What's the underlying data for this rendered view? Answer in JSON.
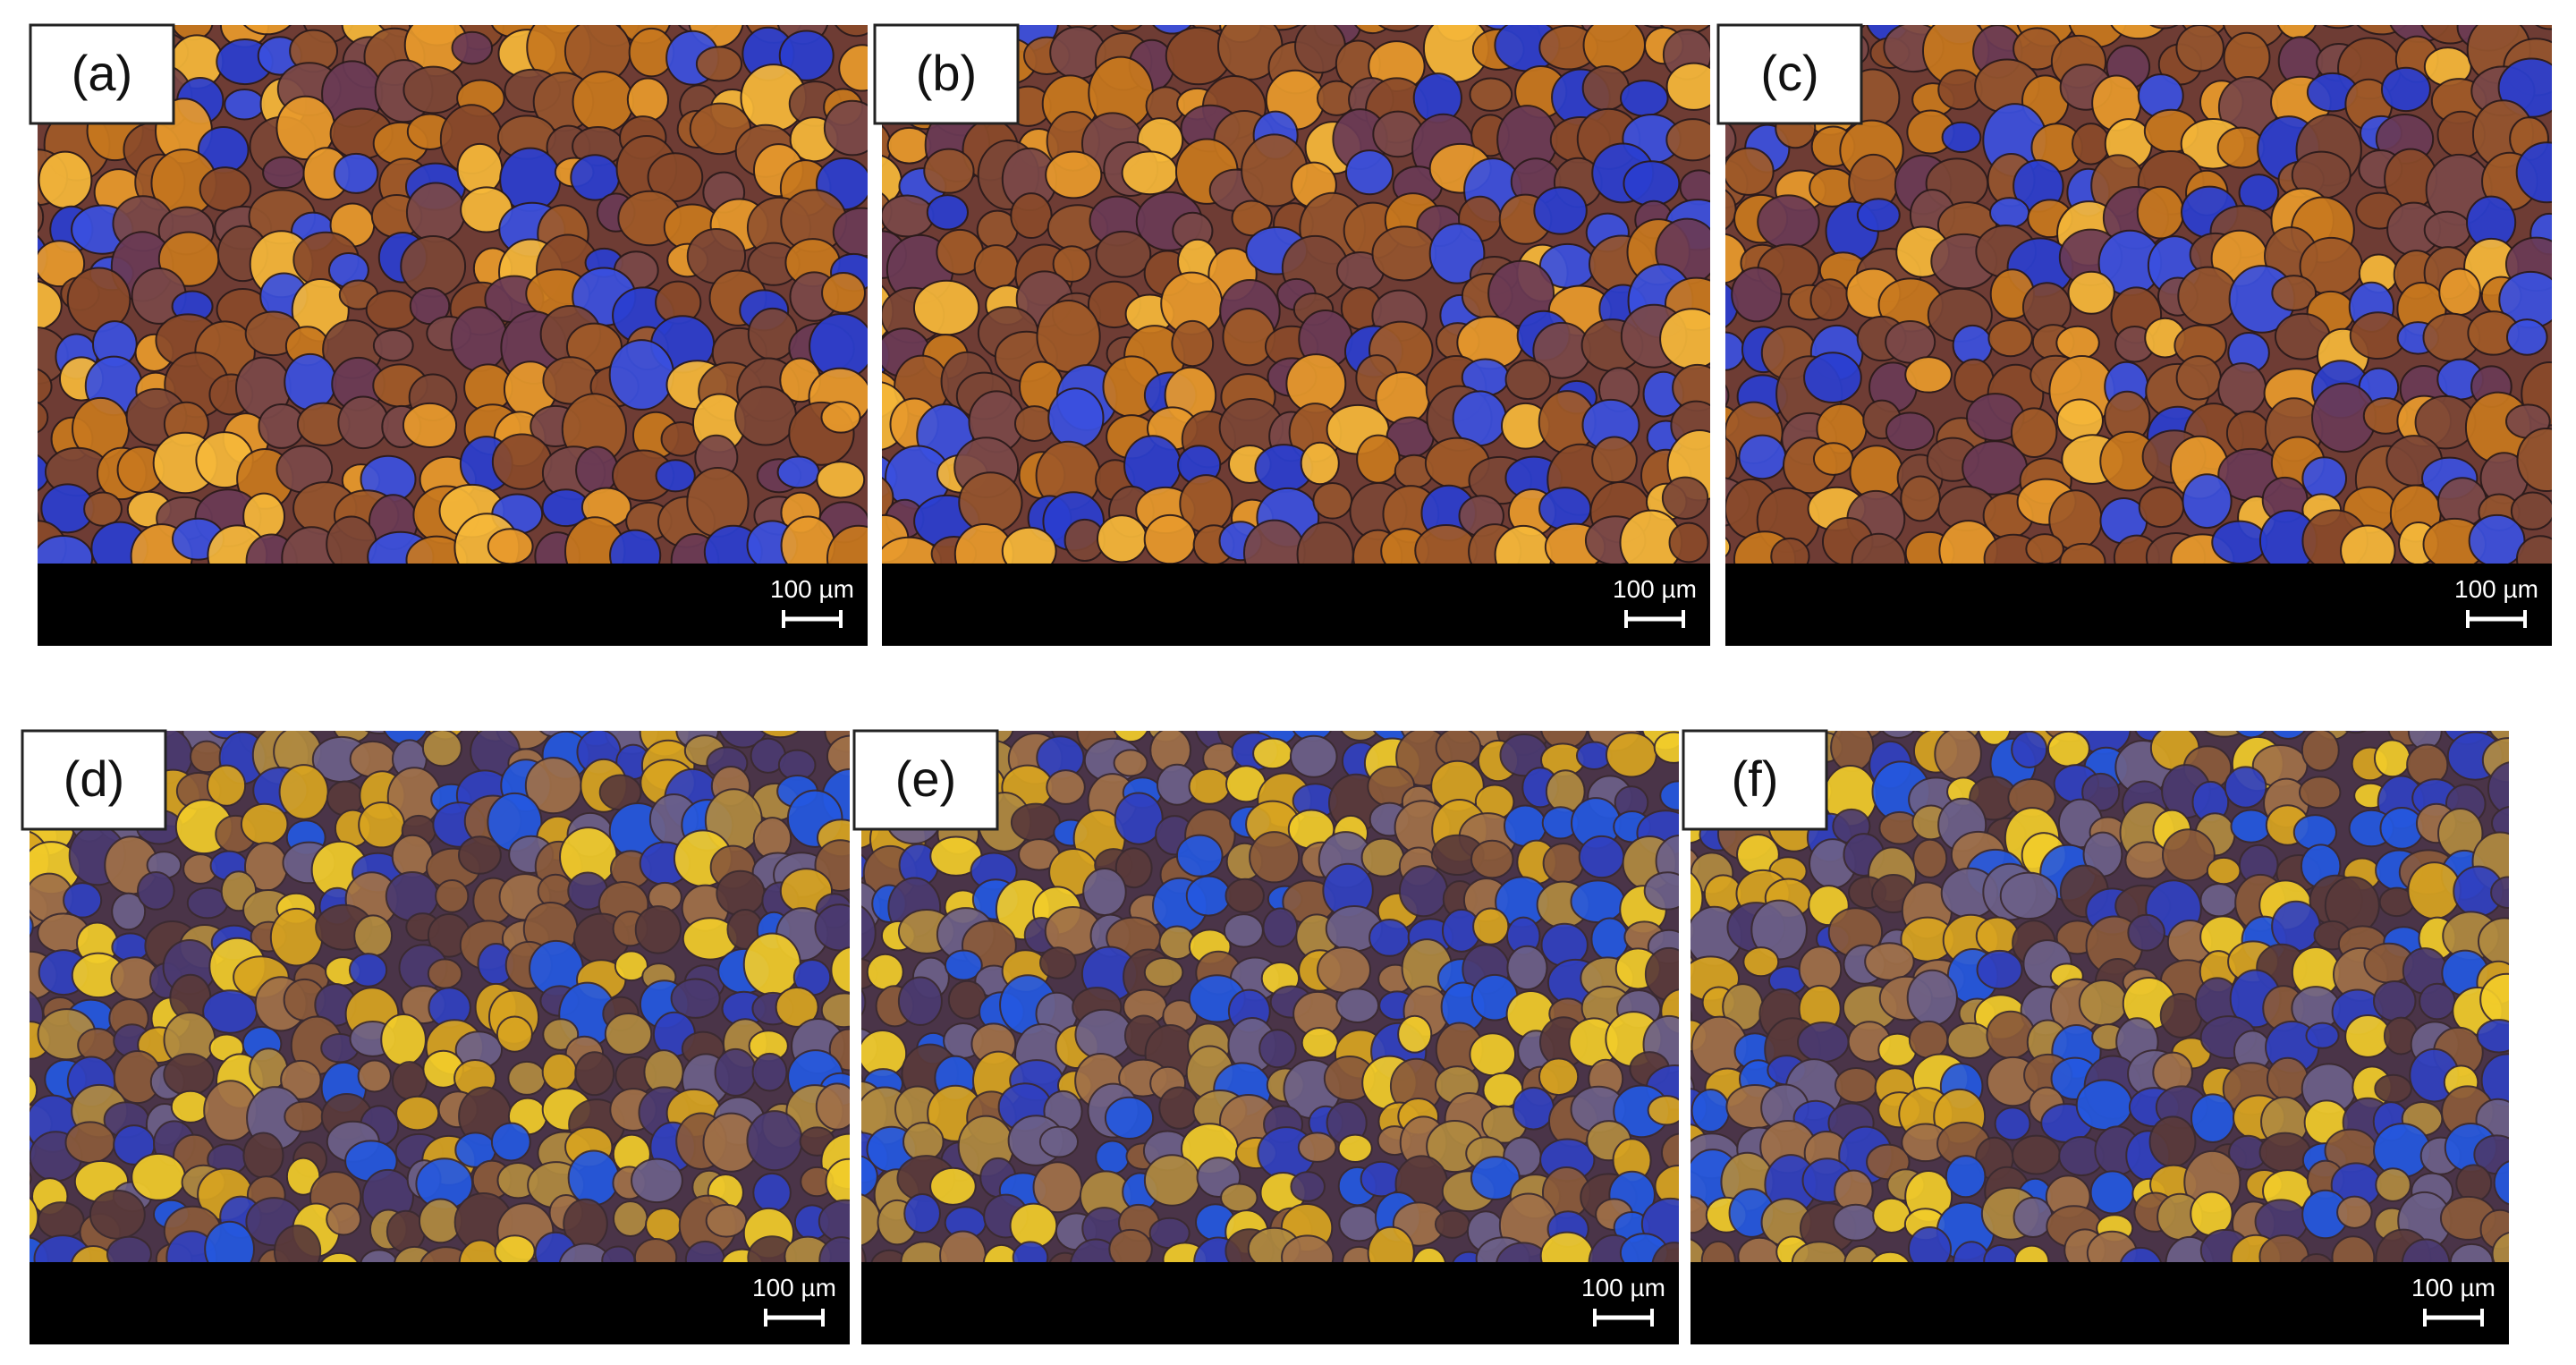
{
  "panels": [
    {
      "label": "(a)",
      "scale_bar": "100 µm"
    },
    {
      "label": "(b)",
      "scale_bar": "100 µm"
    },
    {
      "label": "(c)",
      "scale_bar": "100 µm"
    },
    {
      "label": "(d)",
      "scale_bar": "100 µm"
    },
    {
      "label": "(e)",
      "scale_bar": "100 µm"
    },
    {
      "label": "(f)",
      "scale_bar": "100 µm"
    }
  ]
}
